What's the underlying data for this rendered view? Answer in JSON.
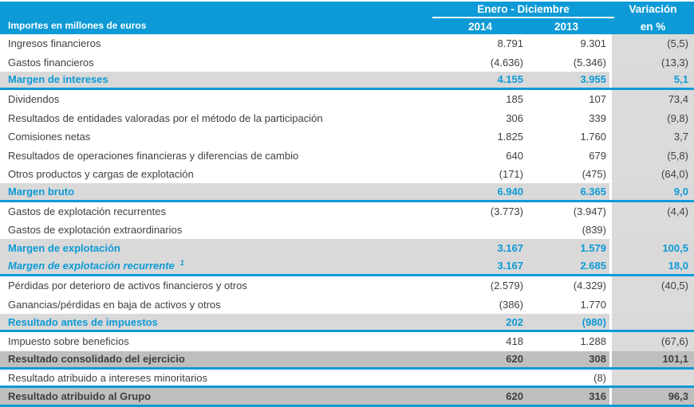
{
  "colors": {
    "header_blue": "#0D9AD6",
    "accent_blue": "#0D9AD6",
    "subtotal_row_gray": "#D9D9D9",
    "grand_total_gray": "#BFBFBF",
    "variation_column_gray": "#DBDBDB",
    "text_dark": "#3F3F3F",
    "header_text": "#FFFFFF"
  },
  "table": {
    "unit_note": "Importes en millones de euros",
    "period_header": "Enero - Diciembre",
    "year_columns": [
      "2014",
      "2013"
    ],
    "variation_header_line1": "Variación",
    "variation_header_line2": "en %",
    "rows": [
      {
        "label": "Ingresos financieros",
        "v2014": "8.791",
        "v2013": "9.301",
        "variation": "(5,5)",
        "style": "normal",
        "sup": ""
      },
      {
        "label": "Gastos financieros",
        "v2014": "(4.636)",
        "v2013": "(5.346)",
        "variation": "(13,3)",
        "style": "normal",
        "sup": ""
      },
      {
        "label": "Margen de intereses",
        "v2014": "4.155",
        "v2013": "3.955",
        "variation": "5,1",
        "style": "subtotal",
        "sup": ""
      },
      {
        "label": "Dividendos",
        "v2014": "185",
        "v2013": "107",
        "variation": "73,4",
        "style": "normal",
        "sup": ""
      },
      {
        "label": "Resultados de entidades valoradas por el método de la participación",
        "v2014": "306",
        "v2013": "339",
        "variation": "(9,8)",
        "style": "normal",
        "sup": ""
      },
      {
        "label": "Comisiones netas",
        "v2014": "1.825",
        "v2013": "1.760",
        "variation": "3,7",
        "style": "normal",
        "sup": ""
      },
      {
        "label": "Resultados de operaciones financieras y diferencias de cambio",
        "v2014": "640",
        "v2013": "679",
        "variation": "(5,8)",
        "style": "normal",
        "sup": ""
      },
      {
        "label": "Otros productos y cargas de explotación",
        "v2014": "(171)",
        "v2013": "(475)",
        "variation": "(64,0)",
        "style": "normal",
        "sup": ""
      },
      {
        "label": "Margen bruto",
        "v2014": "6.940",
        "v2013": "6.365",
        "variation": "9,0",
        "style": "subtotal",
        "sup": ""
      },
      {
        "label": "Gastos de explotación recurrentes",
        "v2014": "(3.773)",
        "v2013": "(3.947)",
        "variation": "(4,4)",
        "style": "normal",
        "sup": ""
      },
      {
        "label": "Gastos de explotación extraordinarios",
        "v2014": "",
        "v2013": "(839)",
        "variation": "",
        "style": "normal",
        "sup": ""
      },
      {
        "label": "Margen de explotación",
        "v2014": "3.167",
        "v2013": "1.579",
        "variation": "100,5",
        "style": "subtotal_open",
        "sup": ""
      },
      {
        "label": "Margen de explotación recurrente",
        "v2014": "3.167",
        "v2013": "2.685",
        "variation": "18,0",
        "style": "subtotal_italic",
        "sup": "1"
      },
      {
        "label": "Pérdidas por deterioro de activos financieros y otros",
        "v2014": "(2.579)",
        "v2013": "(4.329)",
        "variation": "(40,5)",
        "style": "normal",
        "sup": ""
      },
      {
        "label": "Ganancias/pérdidas en baja de activos y otros",
        "v2014": "(386)",
        "v2013": "1.770",
        "variation": "",
        "style": "normal",
        "sup": ""
      },
      {
        "label": "Resultado antes de impuestos",
        "v2014": "202",
        "v2013": "(980)",
        "variation": "",
        "style": "subtotal",
        "sup": ""
      },
      {
        "label": "Impuesto sobre beneficios",
        "v2014": "418",
        "v2013": "1.288",
        "variation": "(67,6)",
        "style": "normal",
        "sup": ""
      },
      {
        "label": "Resultado consolidado del ejercicio",
        "v2014": "620",
        "v2013": "308",
        "variation": "101,1",
        "style": "grand_total",
        "sup": ""
      },
      {
        "label": "Resultado atribuido a intereses minoritarios",
        "v2014": "",
        "v2013": "(8)",
        "variation": "",
        "style": "normal_border",
        "sup": ""
      },
      {
        "label": "Resultado atribuido al Grupo",
        "v2014": "620",
        "v2013": "316",
        "variation": "96,3",
        "style": "grand_total",
        "sup": ""
      }
    ]
  }
}
